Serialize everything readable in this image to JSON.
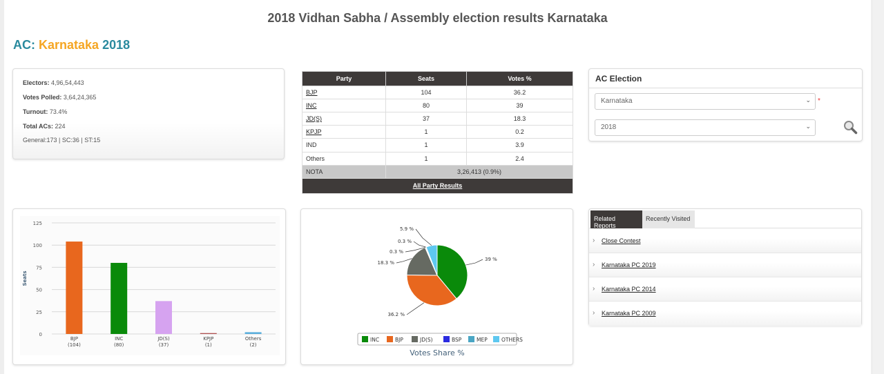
{
  "page_title": "2018 Vidhan Sabha / Assembly election results Karnataka",
  "heading": {
    "prefix": "AC:",
    "state": "Karnataka",
    "year": "2018"
  },
  "stats": {
    "electors_label": "Electors:",
    "electors_value": "4,96,54,443",
    "votes_polled_label": "Votes Polled:",
    "votes_polled_value": "3,64,24,365",
    "turnout_label": "Turnout:",
    "turnout_value": "73.4%",
    "total_acs_label": "Total ACs:",
    "total_acs_value": "224",
    "breakdown": "General:173 | SC:36 | ST:15"
  },
  "results_table": {
    "headers": [
      "Party",
      "Seats",
      "Votes %"
    ],
    "rows": [
      {
        "party": "BJP",
        "seats": "104",
        "votes": "36.2",
        "link": true
      },
      {
        "party": "INC",
        "seats": "80",
        "votes": "39",
        "link": true
      },
      {
        "party": "JD(S)",
        "seats": "37",
        "votes": "18.3",
        "link": true
      },
      {
        "party": "KPJP",
        "seats": "1",
        "votes": "0.2",
        "link": true
      },
      {
        "party": "IND",
        "seats": "1",
        "votes": "3.9",
        "link": false
      },
      {
        "party": "Others",
        "seats": "1",
        "votes": "2.4",
        "link": false
      }
    ],
    "nota_label": "NOTA",
    "nota_value": "3,26,413 (0.9%)",
    "all_results_link": "All Party Results"
  },
  "ac_election": {
    "title": "AC Election",
    "state_selected": "Karnataka",
    "year_selected": "2018",
    "required_mark": "*"
  },
  "related": {
    "tabs": [
      "Related Reports",
      "Recently Visited"
    ],
    "items": [
      "Close Contest",
      "Karnataka PC 2019",
      "Karnataka PC 2014",
      "Karnataka PC 2009"
    ]
  },
  "colors": {
    "accent": "#2a8a9e",
    "state": "#f5a623",
    "dark_header": "#3e3a39"
  },
  "chart_data": [
    {
      "type": "bar",
      "ylabel": "Seats",
      "ylim": [
        0,
        125
      ],
      "yticks": [
        0,
        25,
        50,
        75,
        100,
        125
      ],
      "grid": true,
      "categories": [
        "BJP",
        "INC",
        "JD(S)",
        "KPJP",
        "Others"
      ],
      "category_sublabels": [
        "(104)",
        "(80)",
        "(37)",
        "(1)",
        "(2)"
      ],
      "values": [
        104,
        80,
        37,
        1,
        2
      ],
      "colors": [
        "#e8671e",
        "#0a8a0a",
        "#d6a3f0",
        "#b05050",
        "#5aaedc"
      ]
    },
    {
      "type": "pie",
      "title": "Votes Share %",
      "legend_placement": "bottom",
      "slices": [
        {
          "label": "INC",
          "value": 39,
          "text": "39 %",
          "color": "#0a8a0a"
        },
        {
          "label": "BJP",
          "value": 36.2,
          "text": "36.2 %",
          "color": "#e8671e"
        },
        {
          "label": "JD(S)",
          "value": 18.3,
          "text": "18.3 %",
          "color": "#666a62"
        },
        {
          "label": "BSP",
          "value": 0.3,
          "text": "0.3 %",
          "color": "#2b2be0"
        },
        {
          "label": "MEP",
          "value": 0.3,
          "text": "0.3 %",
          "color": "#4aa6c4"
        },
        {
          "label": "OTHERS",
          "value": 5.9,
          "text": "5.9 %",
          "color": "#5ec8f0"
        }
      ]
    }
  ]
}
